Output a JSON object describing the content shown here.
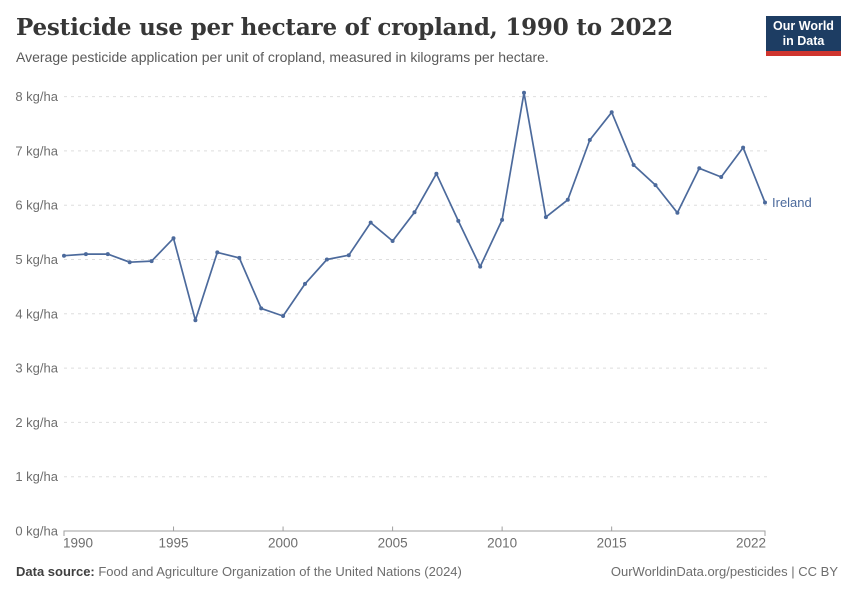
{
  "header": {
    "title": "Pesticide use per hectare of cropland, 1990 to 2022",
    "subtitle": "Average pesticide application per unit of cropland, measured in kilograms per hectare.",
    "logo": {
      "line1": "Our World",
      "line2": "in Data",
      "bg_color": "#1d3d63",
      "bar_color": "#cf352e"
    }
  },
  "chart_data": {
    "type": "line",
    "title": "Pesticide use per hectare of cropland, 1990 to 2022",
    "subtitle": "Average pesticide application per unit of cropland, measured in kilograms per hectare.",
    "xlabel": "",
    "ylabel": "kg/ha",
    "xlim": [
      1990,
      2022
    ],
    "ylim": [
      0,
      8
    ],
    "grid": "horizontal-dashed",
    "legend_position": "end-of-line-label",
    "x_ticks": [
      1990,
      1995,
      2000,
      2005,
      2010,
      2015,
      2022
    ],
    "y_ticks": [
      0,
      1,
      2,
      3,
      4,
      5,
      6,
      7,
      8
    ],
    "y_tick_label_suffix": " kg/ha",
    "x": [
      1990,
      1991,
      1992,
      1993,
      1994,
      1995,
      1996,
      1997,
      1998,
      1999,
      2000,
      2001,
      2002,
      2003,
      2004,
      2005,
      2006,
      2007,
      2008,
      2009,
      2010,
      2011,
      2012,
      2013,
      2014,
      2015,
      2016,
      2017,
      2018,
      2019,
      2020,
      2021,
      2022
    ],
    "series": [
      {
        "name": "Ireland",
        "color": "#4C6A9C",
        "values": [
          5.07,
          5.1,
          5.1,
          4.95,
          4.97,
          5.39,
          3.88,
          5.13,
          5.03,
          4.1,
          3.96,
          4.55,
          5.0,
          5.08,
          5.68,
          5.34,
          5.87,
          6.58,
          5.71,
          4.87,
          5.73,
          8.07,
          5.78,
          6.1,
          7.2,
          7.71,
          6.74,
          6.37,
          5.86,
          6.68,
          6.52,
          7.06,
          6.05
        ]
      }
    ]
  },
  "footer": {
    "source_label": "Data source:",
    "source_text": " Food and Agriculture Organization of the United Nations (2024)",
    "credit": "OurWorldinData.org/pesticides | CC BY"
  }
}
